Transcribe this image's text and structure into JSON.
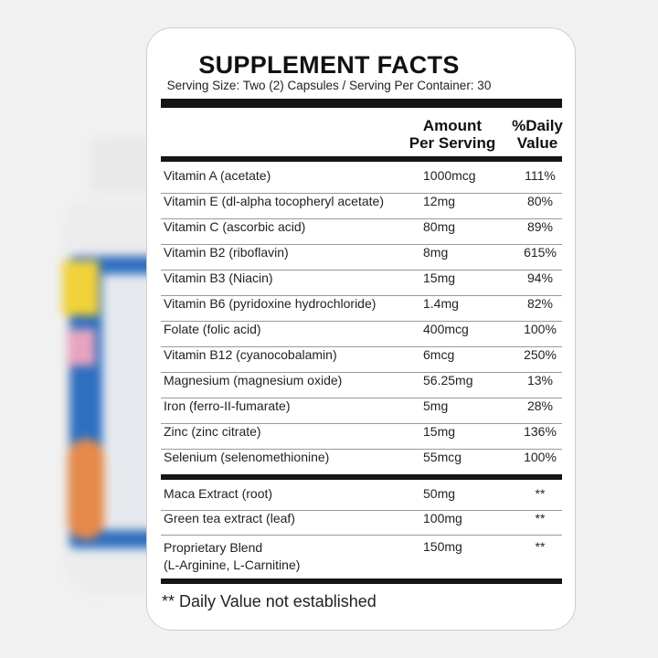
{
  "panel": {
    "title": "SUPPLEMENT FACTS",
    "serving": "Serving Size: Two (2) Capsules / Serving Per Container: 30",
    "header_amount_1": "Amount",
    "header_amount_2": "Per Serving",
    "header_dv_1": "%Daily",
    "header_dv_2": "Value"
  },
  "nutrients": [
    {
      "name": "Vitamin A (acetate)",
      "amount": "1000mcg",
      "dv": "111%"
    },
    {
      "name": "Vitamin E (dl-alpha tocopheryl acetate)",
      "amount": "12mg",
      "dv": "80%"
    },
    {
      "name": "Vitamin C (ascorbic acid)",
      "amount": "80mg",
      "dv": "89%"
    },
    {
      "name": "Vitamin B2 (riboflavin)",
      "amount": "8mg",
      "dv": "615%"
    },
    {
      "name": "Vitamin B3 (Niacin)",
      "amount": "15mg",
      "dv": "94%"
    },
    {
      "name": "Vitamin B6 (pyridoxine hydrochloride)",
      "amount": "1.4mg",
      "dv": "82%"
    },
    {
      "name": "Folate (folic acid)",
      "amount": "400mcg",
      "dv": "100%"
    },
    {
      "name": "Vitamin B12 (cyanocobalamin)",
      "amount": "6mcg",
      "dv": "250%"
    },
    {
      "name": "Magnesium (magnesium oxide)",
      "amount": "56.25mg",
      "dv": "13%"
    },
    {
      "name": "Iron (ferro-II-fumarate)",
      "amount": "5mg",
      "dv": "28%"
    },
    {
      "name": "Zinc (zinc citrate)",
      "amount": "15mg",
      "dv": "136%"
    },
    {
      "name": "Selenium (selenomethionine)",
      "amount": "55mcg",
      "dv": "100%"
    }
  ],
  "extracts": [
    {
      "name": "Maca Extract (root)",
      "amount": "50mg",
      "dv": "**"
    },
    {
      "name": "Green tea extract (leaf)",
      "amount": "100mg",
      "dv": "**"
    },
    {
      "name_line1": "Proprietary Blend",
      "name_line2": "(L-Arginine, L-Carnitine)",
      "amount": "150mg",
      "dv": "**"
    }
  ],
  "footnote": "** Daily Value not established"
}
